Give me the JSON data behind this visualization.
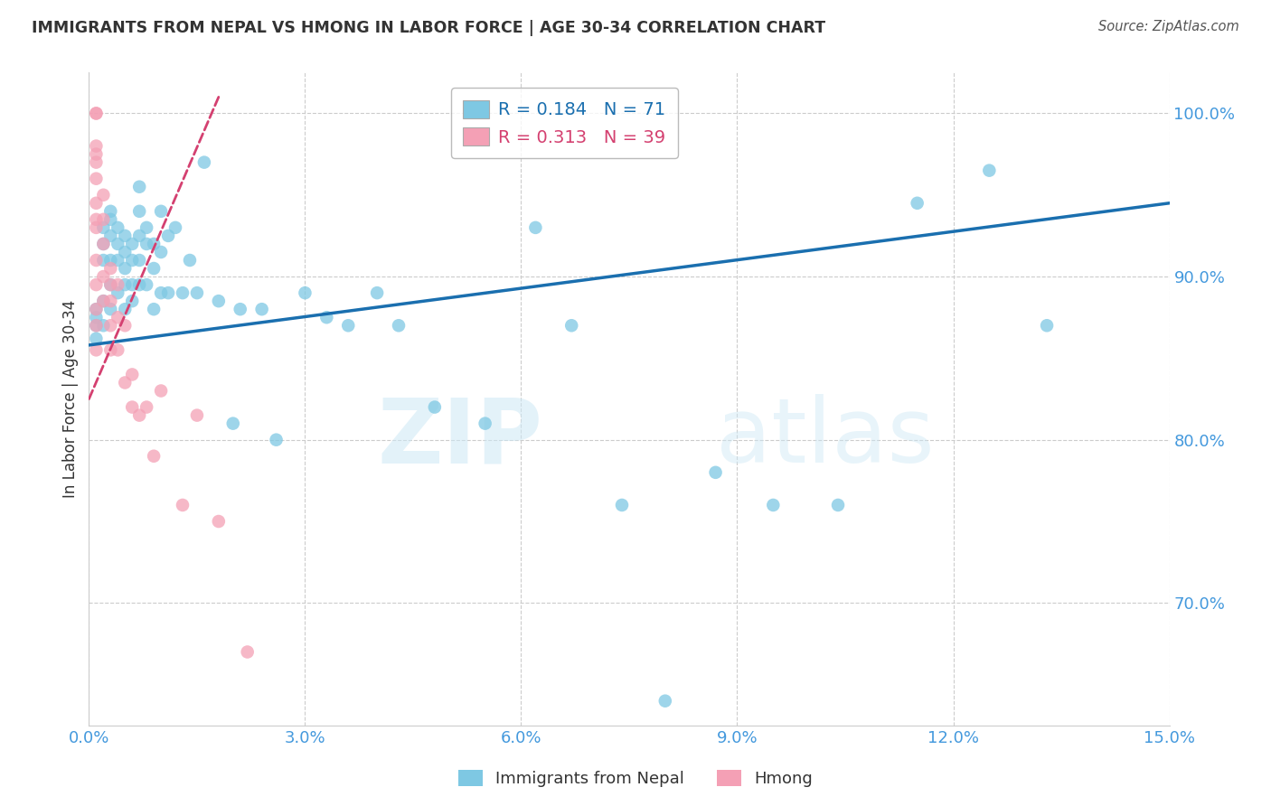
{
  "title": "IMMIGRANTS FROM NEPAL VS HMONG IN LABOR FORCE | AGE 30-34 CORRELATION CHART",
  "source": "Source: ZipAtlas.com",
  "xlabel": "",
  "ylabel": "In Labor Force | Age 30-34",
  "xlim": [
    0.0,
    0.15
  ],
  "ylim": [
    0.625,
    1.025
  ],
  "xticks": [
    0.0,
    0.03,
    0.06,
    0.09,
    0.12,
    0.15
  ],
  "xtick_labels": [
    "0.0%",
    "3.0%",
    "6.0%",
    "9.0%",
    "12.0%",
    "15.0%"
  ],
  "yticks": [
    0.7,
    0.8,
    0.9,
    1.0
  ],
  "ytick_labels": [
    "70.0%",
    "80.0%",
    "90.0%",
    "100.0%"
  ],
  "nepal_color": "#7ec8e3",
  "hmong_color": "#f4a0b5",
  "nepal_line_color": "#1a6faf",
  "hmong_line_color": "#d44070",
  "nepal_R": 0.184,
  "nepal_N": 71,
  "hmong_R": 0.313,
  "hmong_N": 39,
  "nepal_trend_x0": 0.0,
  "nepal_trend_y0": 0.858,
  "nepal_trend_x1": 0.15,
  "nepal_trend_y1": 0.945,
  "hmong_trend_x0": 0.0,
  "hmong_trend_y0": 0.825,
  "hmong_trend_x1": 0.018,
  "hmong_trend_y1": 1.01,
  "nepal_x": [
    0.001,
    0.001,
    0.001,
    0.001,
    0.002,
    0.002,
    0.002,
    0.002,
    0.002,
    0.003,
    0.003,
    0.003,
    0.003,
    0.003,
    0.003,
    0.004,
    0.004,
    0.004,
    0.004,
    0.005,
    0.005,
    0.005,
    0.005,
    0.005,
    0.006,
    0.006,
    0.006,
    0.006,
    0.007,
    0.007,
    0.007,
    0.007,
    0.007,
    0.008,
    0.008,
    0.008,
    0.009,
    0.009,
    0.009,
    0.01,
    0.01,
    0.01,
    0.011,
    0.011,
    0.012,
    0.013,
    0.014,
    0.015,
    0.016,
    0.018,
    0.02,
    0.021,
    0.024,
    0.026,
    0.03,
    0.033,
    0.036,
    0.04,
    0.043,
    0.048,
    0.055,
    0.062,
    0.067,
    0.074,
    0.08,
    0.087,
    0.095,
    0.104,
    0.115,
    0.125,
    0.133
  ],
  "nepal_y": [
    0.88,
    0.875,
    0.87,
    0.862,
    0.93,
    0.92,
    0.91,
    0.885,
    0.87,
    0.94,
    0.935,
    0.925,
    0.91,
    0.895,
    0.88,
    0.93,
    0.92,
    0.91,
    0.89,
    0.925,
    0.915,
    0.905,
    0.895,
    0.88,
    0.92,
    0.91,
    0.895,
    0.885,
    0.955,
    0.94,
    0.925,
    0.91,
    0.895,
    0.93,
    0.92,
    0.895,
    0.92,
    0.905,
    0.88,
    0.94,
    0.915,
    0.89,
    0.925,
    0.89,
    0.93,
    0.89,
    0.91,
    0.89,
    0.97,
    0.885,
    0.81,
    0.88,
    0.88,
    0.8,
    0.89,
    0.875,
    0.87,
    0.89,
    0.87,
    0.82,
    0.81,
    0.93,
    0.87,
    0.76,
    0.64,
    0.78,
    0.76,
    0.76,
    0.945,
    0.965,
    0.87
  ],
  "hmong_x": [
    0.001,
    0.001,
    0.001,
    0.001,
    0.001,
    0.001,
    0.001,
    0.001,
    0.001,
    0.001,
    0.001,
    0.001,
    0.001,
    0.001,
    0.002,
    0.002,
    0.002,
    0.002,
    0.002,
    0.003,
    0.003,
    0.003,
    0.003,
    0.003,
    0.004,
    0.004,
    0.004,
    0.005,
    0.005,
    0.006,
    0.006,
    0.007,
    0.008,
    0.009,
    0.01,
    0.013,
    0.015,
    0.018,
    0.022
  ],
  "hmong_y": [
    1.0,
    1.0,
    0.98,
    0.975,
    0.97,
    0.96,
    0.945,
    0.935,
    0.93,
    0.91,
    0.895,
    0.88,
    0.87,
    0.855,
    0.95,
    0.935,
    0.92,
    0.9,
    0.885,
    0.905,
    0.895,
    0.885,
    0.87,
    0.855,
    0.895,
    0.875,
    0.855,
    0.87,
    0.835,
    0.84,
    0.82,
    0.815,
    0.82,
    0.79,
    0.83,
    0.76,
    0.815,
    0.75,
    0.67
  ],
  "watermark_zip": "ZIP",
  "watermark_atlas": "atlas",
  "grid_color": "#cccccc",
  "title_color": "#333333",
  "axis_color": "#4499dd",
  "legend_nepal_label": "Immigrants from Nepal",
  "legend_hmong_label": "Hmong"
}
